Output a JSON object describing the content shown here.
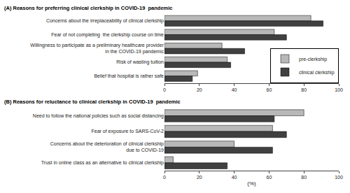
{
  "chart_data": [
    {
      "type": "bar",
      "orientation": "horizontal",
      "title": "(A) Reasons for preferring clinical clerkship in COVID-19  pandemic",
      "categories": [
        "Concerns about the irreplaceability of clinical clerkship",
        "Fear of not completing  the clerkship course on time",
        "Willingness to participate as a preliminary healthcare provider\nin the COVID-19 pandemic",
        "Risk of wasting tuition",
        "Belief that hospital is rather safe"
      ],
      "series": [
        {
          "name": "pre-clerkship",
          "color": "#b8b8b8",
          "values": [
            84,
            63,
            33,
            36,
            19
          ]
        },
        {
          "name": "clinical clerkship",
          "color": "#404040",
          "values": [
            91,
            70,
            46,
            38,
            16
          ]
        }
      ],
      "xlim": [
        0,
        100
      ],
      "xticks": [
        0,
        20,
        40,
        60,
        80,
        100
      ],
      "grid": false,
      "legend": "lower right"
    },
    {
      "type": "bar",
      "orientation": "horizontal",
      "title": "(B) Reasons for reluctance to clinical clerkship in COVID-19  pandemic",
      "x_label": "(%)",
      "categories": [
        "Need to follow the national policies such as social distancing",
        "Fear of exposure to SARS-CoV-2",
        "Concerns about the deterioration of clinical clerkship\ndue to COVID-19",
        "Trust in online class as an alternative to clinical clerkship"
      ],
      "series": [
        {
          "name": "pre-clerkship",
          "color": "#b8b8b8",
          "values": [
            80,
            62,
            40,
            5
          ]
        },
        {
          "name": "clinical clerkship",
          "color": "#404040",
          "values": [
            63,
            70,
            62,
            36
          ]
        }
      ],
      "xlim": [
        0,
        100
      ],
      "xticks": [
        0,
        20,
        40,
        60,
        80,
        100
      ],
      "grid": false
    }
  ]
}
